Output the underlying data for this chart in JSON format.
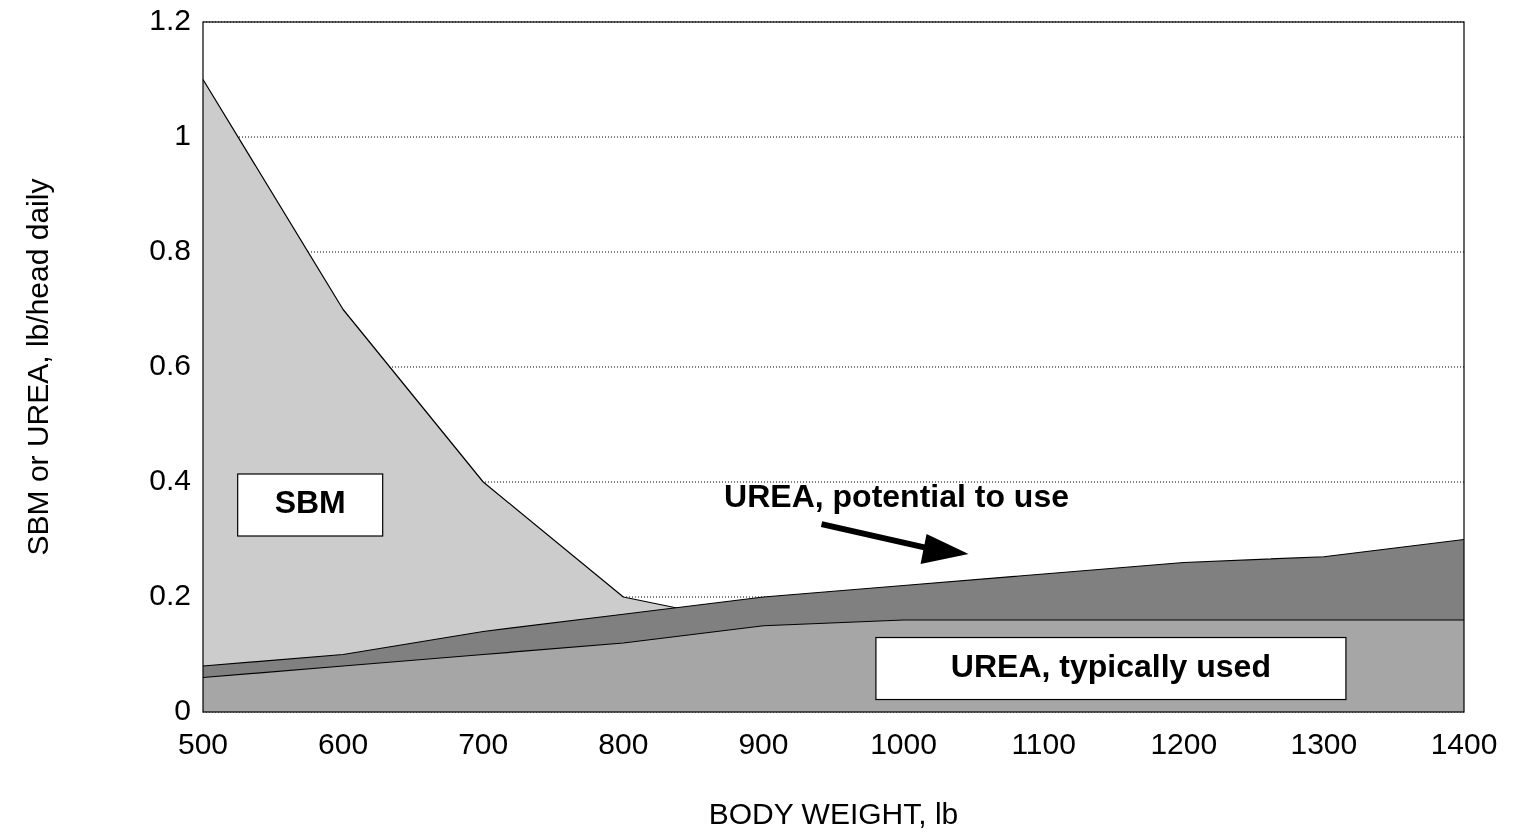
{
  "chart_data": {
    "type": "area",
    "xlabel": "BODY WEIGHT, lb",
    "ylabel": "SBM or UREA, lb/head daily",
    "x": [
      500,
      600,
      700,
      800,
      900,
      1000,
      1100,
      1200,
      1300,
      1400
    ],
    "series": [
      {
        "name": "SBM",
        "color": "#cccccc",
        "values": [
          1.1,
          0.7,
          0.4,
          0.2,
          0.15,
          null,
          null,
          null,
          null,
          null
        ]
      },
      {
        "name": "UREA, potential to use",
        "color": "#808080",
        "values": [
          0.08,
          0.1,
          0.14,
          0.17,
          0.2,
          0.22,
          0.24,
          0.26,
          0.27,
          0.3
        ]
      },
      {
        "name": "UREA, typically used",
        "color": "#a6a6a6",
        "values": [
          0.06,
          0.08,
          0.1,
          0.12,
          0.15,
          0.16,
          0.16,
          0.16,
          0.16,
          0.16
        ]
      }
    ],
    "xlim": [
      500,
      1400
    ],
    "xticks": [
      500,
      600,
      700,
      800,
      900,
      1000,
      1100,
      1200,
      1300,
      1400
    ],
    "ylim": [
      0,
      1.2
    ],
    "yticks": [
      0,
      0.2,
      0.4,
      0.6,
      0.8,
      1,
      1.2
    ],
    "grid": "y",
    "legend": false
  }
}
